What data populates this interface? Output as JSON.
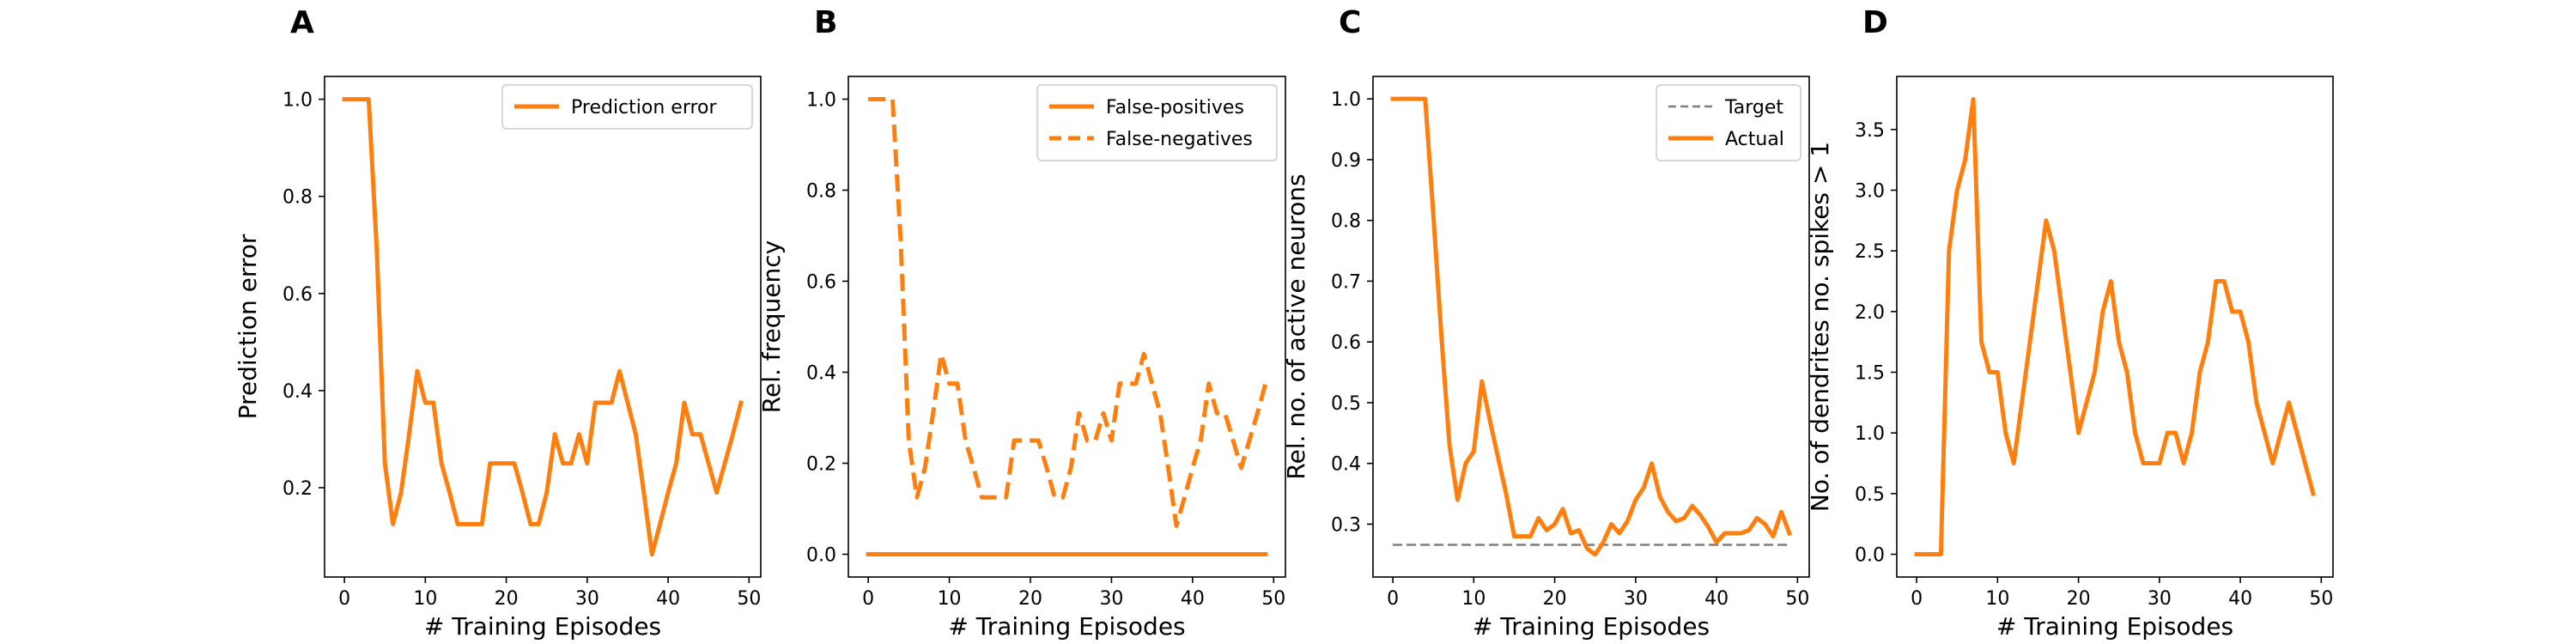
{
  "colors": {
    "orange": "#ff7f0e",
    "gray": "#7f7f7f"
  },
  "chart_data": [
    {
      "type": "line",
      "panel_letter": "A",
      "xlabel": "# Training Episodes",
      "ylabel": "Prediction error",
      "xlim": [
        -2.45,
        51.45
      ],
      "ylim": [
        0.016,
        1.047
      ],
      "xticks": [
        0,
        10,
        20,
        30,
        40,
        50
      ],
      "yticks": [
        0.2,
        0.4,
        0.6,
        0.8,
        1.0
      ],
      "ytick_labels": [
        "0.2",
        "0.4",
        "0.6",
        "0.8",
        "1.0"
      ],
      "legend_position": "upper right",
      "series": [
        {
          "name": "Prediction error",
          "style": "solid",
          "color": "#ff7f0e",
          "x": [
            0,
            1,
            2,
            3,
            4,
            5,
            6,
            7,
            8,
            9,
            10,
            11,
            12,
            13,
            14,
            15,
            16,
            17,
            18,
            19,
            20,
            21,
            22,
            23,
            24,
            25,
            26,
            27,
            28,
            29,
            30,
            31,
            32,
            33,
            34,
            35,
            36,
            37,
            38,
            39,
            40,
            41,
            42,
            43,
            44,
            45,
            46,
            47,
            48,
            49
          ],
          "y": [
            1.0,
            1.0,
            1.0,
            1.0,
            0.69,
            0.25,
            0.125,
            0.19,
            0.31,
            0.44,
            0.375,
            0.375,
            0.25,
            0.19,
            0.125,
            0.125,
            0.125,
            0.125,
            0.25,
            0.25,
            0.25,
            0.25,
            0.19,
            0.125,
            0.125,
            0.19,
            0.31,
            0.25,
            0.25,
            0.31,
            0.25,
            0.375,
            0.375,
            0.375,
            0.44,
            0.375,
            0.31,
            0.19,
            0.0625,
            0.125,
            0.19,
            0.25,
            0.375,
            0.31,
            0.31,
            0.25,
            0.19,
            0.25,
            0.31,
            0.375
          ]
        }
      ]
    },
    {
      "type": "line",
      "panel_letter": "B",
      "xlabel": "# Training Episodes",
      "ylabel": "Rel. frequency",
      "xlim": [
        -2.45,
        51.45
      ],
      "ylim": [
        -0.05,
        1.05
      ],
      "xticks": [
        0,
        10,
        20,
        30,
        40,
        50
      ],
      "yticks": [
        0.0,
        0.2,
        0.4,
        0.6,
        0.8,
        1.0
      ],
      "ytick_labels": [
        "0.0",
        "0.2",
        "0.4",
        "0.6",
        "0.8",
        "1.0"
      ],
      "legend_position": "upper right",
      "series": [
        {
          "name": "False-positives",
          "style": "solid",
          "color": "#ff7f0e",
          "x": [
            0,
            49
          ],
          "y": [
            0.0,
            0.0
          ]
        },
        {
          "name": "False-negatives",
          "style": "dashed",
          "color": "#ff7f0e",
          "x": [
            0,
            1,
            2,
            3,
            4,
            5,
            6,
            7,
            8,
            9,
            10,
            11,
            12,
            13,
            14,
            15,
            16,
            17,
            18,
            19,
            20,
            21,
            22,
            23,
            24,
            25,
            26,
            27,
            28,
            29,
            30,
            31,
            32,
            33,
            34,
            35,
            36,
            37,
            38,
            39,
            40,
            41,
            42,
            43,
            44,
            45,
            46,
            47,
            48,
            49
          ],
          "y": [
            1.0,
            1.0,
            1.0,
            1.0,
            0.69,
            0.25,
            0.125,
            0.19,
            0.31,
            0.44,
            0.375,
            0.375,
            0.25,
            0.19,
            0.125,
            0.125,
            0.125,
            0.125,
            0.25,
            0.25,
            0.25,
            0.25,
            0.19,
            0.125,
            0.125,
            0.19,
            0.31,
            0.25,
            0.25,
            0.31,
            0.25,
            0.375,
            0.375,
            0.375,
            0.44,
            0.375,
            0.31,
            0.19,
            0.0625,
            0.125,
            0.19,
            0.25,
            0.375,
            0.31,
            0.31,
            0.25,
            0.19,
            0.25,
            0.31,
            0.375
          ]
        }
      ]
    },
    {
      "type": "line",
      "panel_letter": "C",
      "xlabel": "# Training Episodes",
      "ylabel": "Rel. no. of active neurons",
      "xlim": [
        -2.45,
        51.45
      ],
      "ylim": [
        0.213,
        1.037
      ],
      "xticks": [
        0,
        10,
        20,
        30,
        40,
        50
      ],
      "yticks": [
        0.3,
        0.4,
        0.5,
        0.6,
        0.7,
        0.8,
        0.9,
        1.0
      ],
      "ytick_labels": [
        "0.3",
        "0.4",
        "0.5",
        "0.6",
        "0.7",
        "0.8",
        "0.9",
        "1.0"
      ],
      "legend_position": "upper right",
      "series": [
        {
          "name": "Target",
          "style": "dashed",
          "color": "#7f7f7f",
          "x": [
            0,
            49
          ],
          "y": [
            0.266,
            0.266
          ]
        },
        {
          "name": "Actual",
          "style": "solid",
          "color": "#ff7f0e",
          "x": [
            0,
            1,
            2,
            3,
            4,
            5,
            6,
            7,
            8,
            9,
            10,
            11,
            12,
            13,
            14,
            15,
            16,
            17,
            18,
            19,
            20,
            21,
            22,
            23,
            24,
            25,
            26,
            27,
            28,
            29,
            30,
            31,
            32,
            33,
            34,
            35,
            36,
            37,
            38,
            39,
            40,
            41,
            42,
            43,
            44,
            45,
            46,
            47,
            48,
            49
          ],
          "y": [
            1.0,
            1.0,
            1.0,
            1.0,
            1.0,
            0.81,
            0.61,
            0.43,
            0.34,
            0.4,
            0.42,
            0.535,
            0.47,
            0.41,
            0.35,
            0.28,
            0.28,
            0.28,
            0.31,
            0.29,
            0.3,
            0.325,
            0.285,
            0.29,
            0.26,
            0.25,
            0.27,
            0.3,
            0.285,
            0.305,
            0.34,
            0.36,
            0.4,
            0.345,
            0.32,
            0.305,
            0.31,
            0.33,
            0.315,
            0.295,
            0.27,
            0.285,
            0.285,
            0.285,
            0.29,
            0.31,
            0.3,
            0.28,
            0.32,
            0.285
          ]
        }
      ]
    },
    {
      "type": "line",
      "panel_letter": "D",
      "xlabel": "# Training Episodes",
      "ylabel": "No. of dendrites no. spikes > 1",
      "xlim": [
        -2.45,
        51.45
      ],
      "ylim": [
        -0.1875,
        3.9375
      ],
      "xticks": [
        0,
        10,
        20,
        30,
        40,
        50
      ],
      "yticks": [
        0.0,
        0.5,
        1.0,
        1.5,
        2.0,
        2.5,
        3.0,
        3.5
      ],
      "ytick_labels": [
        "0.0",
        "0.5",
        "1.0",
        "1.5",
        "2.0",
        "2.5",
        "3.0",
        "3.5"
      ],
      "legend_position": "",
      "series": [
        {
          "style": "solid",
          "color": "#ff7f0e",
          "x": [
            0,
            1,
            2,
            3,
            4,
            5,
            6,
            7,
            8,
            9,
            10,
            11,
            12,
            13,
            14,
            15,
            16,
            17,
            18,
            19,
            20,
            21,
            22,
            23,
            24,
            25,
            26,
            27,
            28,
            29,
            30,
            31,
            32,
            33,
            34,
            35,
            36,
            37,
            38,
            39,
            40,
            41,
            42,
            43,
            44,
            45,
            46,
            47,
            48,
            49
          ],
          "y": [
            0.0,
            0.0,
            0.0,
            0.0,
            2.5,
            3.0,
            3.25,
            3.75,
            1.75,
            1.5,
            1.5,
            1.0,
            0.75,
            1.25,
            1.75,
            2.25,
            2.75,
            2.5,
            2.0,
            1.5,
            1.0,
            1.25,
            1.5,
            2.0,
            2.25,
            1.75,
            1.5,
            1.0,
            0.75,
            0.75,
            0.75,
            1.0,
            1.0,
            0.75,
            1.0,
            1.5,
            1.75,
            2.25,
            2.25,
            2.0,
            2.0,
            1.75,
            1.25,
            1.0,
            0.75,
            1.0,
            1.25,
            1.0,
            0.75,
            0.5
          ]
        }
      ]
    }
  ]
}
